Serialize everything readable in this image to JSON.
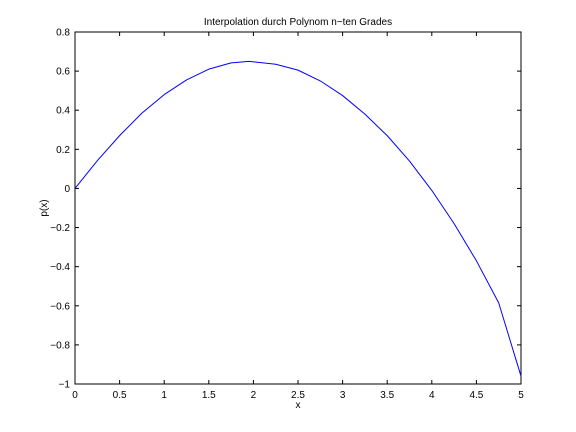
{
  "chart_data": {
    "type": "line",
    "title": "Interpolation durch Polynom n−ten Grades",
    "xlabel": "x",
    "ylabel": "p(x)",
    "xlim": [
      0,
      5
    ],
    "ylim": [
      -1,
      0.8
    ],
    "xticks": [
      0,
      0.5,
      1,
      1.5,
      2,
      2.5,
      3,
      3.5,
      4,
      4.5,
      5
    ],
    "xtick_labels": [
      "0",
      "0.5",
      "1",
      "1.5",
      "2",
      "2.5",
      "3",
      "3.5",
      "4",
      "4.5",
      "5"
    ],
    "yticks": [
      -1,
      -0.8,
      -0.6,
      -0.4,
      -0.2,
      0,
      0.2,
      0.4,
      0.6,
      0.8
    ],
    "ytick_labels": [
      "−1",
      "−0.8",
      "−0.6",
      "−0.4",
      "−0.2",
      "0",
      "0.2",
      "0.4",
      "0.6",
      "0.8"
    ],
    "grid": false,
    "colors": {
      "line": "#0000ff",
      "axes": "#000000",
      "background": "#ffffff"
    },
    "series": [
      {
        "x": [
          0,
          0.25,
          0.5,
          0.75,
          1.0,
          1.25,
          1.5,
          1.75,
          1.95,
          2.25,
          2.5,
          2.75,
          3.0,
          3.25,
          3.5,
          3.75,
          4.0,
          4.25,
          4.5,
          4.75,
          5.0
        ],
        "values": [
          0,
          0.142,
          0.27,
          0.385,
          0.48,
          0.555,
          0.61,
          0.642,
          0.65,
          0.635,
          0.605,
          0.55,
          0.475,
          0.38,
          0.27,
          0.14,
          -0.01,
          -0.18,
          -0.37,
          -0.585,
          -0.96
        ]
      }
    ]
  }
}
